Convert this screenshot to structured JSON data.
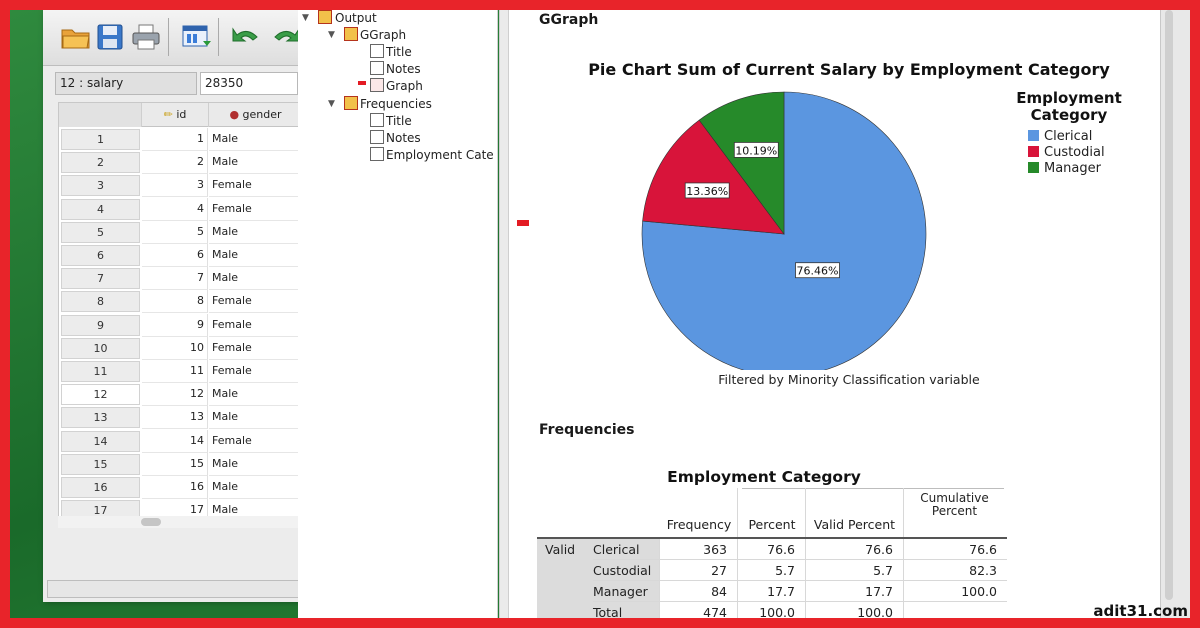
{
  "data_editor": {
    "cell_ref": "12 : salary",
    "cell_value": "28350",
    "columns": {
      "id": "id",
      "gender": "gender"
    },
    "rows": [
      {
        "num": "1",
        "id": "1",
        "gender": "Male"
      },
      {
        "num": "2",
        "id": "2",
        "gender": "Male"
      },
      {
        "num": "3",
        "id": "3",
        "gender": "Female"
      },
      {
        "num": "4",
        "id": "4",
        "gender": "Female"
      },
      {
        "num": "5",
        "id": "5",
        "gender": "Male"
      },
      {
        "num": "6",
        "id": "6",
        "gender": "Male"
      },
      {
        "num": "7",
        "id": "7",
        "gender": "Male"
      },
      {
        "num": "8",
        "id": "8",
        "gender": "Female"
      },
      {
        "num": "9",
        "id": "9",
        "gender": "Female"
      },
      {
        "num": "10",
        "id": "10",
        "gender": "Female"
      },
      {
        "num": "11",
        "id": "11",
        "gender": "Female"
      },
      {
        "num": "12",
        "id": "12",
        "gender": "Male"
      },
      {
        "num": "13",
        "id": "13",
        "gender": "Male"
      },
      {
        "num": "14",
        "id": "14",
        "gender": "Female"
      },
      {
        "num": "15",
        "id": "15",
        "gender": "Male"
      },
      {
        "num": "16",
        "id": "16",
        "gender": "Male"
      },
      {
        "num": "17",
        "id": "17",
        "gender": "Male"
      }
    ],
    "toolbar_icons": [
      "open-folder-icon",
      "save-icon",
      "print-icon",
      "dialog-recall-icon",
      "undo-icon",
      "redo-icon"
    ]
  },
  "navigator": {
    "output": "Output",
    "ggraph": "GGraph",
    "ggraph_title": "Title",
    "ggraph_notes": "Notes",
    "ggraph_graph": "Graph",
    "frequencies": "Frequencies",
    "freq_title": "Title",
    "freq_notes": "Notes",
    "freq_table": "Employment Cate"
  },
  "output": {
    "ggraph_heading": "GGraph",
    "frequencies_heading": "Frequencies",
    "chart_note": "Filtered by Minority Classification variable"
  },
  "chart_data": {
    "type": "pie",
    "title": "Pie Chart Sum of Current Salary by Employment Category",
    "legend_title": "Employment Category",
    "legend_position": "right",
    "categories": [
      "Clerical",
      "Custodial",
      "Manager"
    ],
    "values": [
      76.46,
      13.36,
      10.19
    ],
    "labels": [
      "76.46%",
      "13.36%",
      "10.19%"
    ],
    "colors": [
      "#5b96e0",
      "#d8143a",
      "#268a2a"
    ]
  },
  "freq_table": {
    "caption": "Employment Category",
    "headers": [
      "Frequency",
      "Percent",
      "Valid Percent",
      "Cumulative Percent"
    ],
    "group_label": "Valid",
    "rows": [
      {
        "label": "Clerical",
        "frequency": "363",
        "percent": "76.6",
        "valid_percent": "76.6",
        "cumulative": "76.6"
      },
      {
        "label": "Custodial",
        "frequency": "27",
        "percent": "5.7",
        "valid_percent": "5.7",
        "cumulative": "82.3"
      },
      {
        "label": "Manager",
        "frequency": "84",
        "percent": "17.7",
        "valid_percent": "17.7",
        "cumulative": "100.0"
      },
      {
        "label": "Total",
        "frequency": "474",
        "percent": "100.0",
        "valid_percent": "100.0",
        "cumulative": ""
      }
    ]
  },
  "watermark": "adit31.com"
}
